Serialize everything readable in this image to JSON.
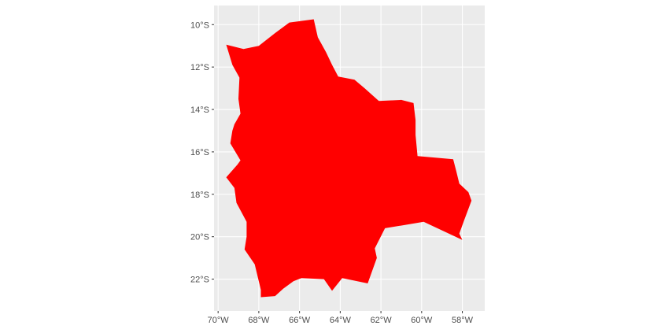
{
  "chart_data": {
    "type": "map",
    "country": "Bolivia",
    "fill_color": "#ff0000",
    "panel_background": "#ebebeb",
    "grid": true,
    "grid_color": "#ffffff",
    "xlim": [
      -70.2,
      -56.9
    ],
    "ylim": [
      -23.5,
      -9.1
    ],
    "x_ticks": [
      {
        "value": -70,
        "label": "70°W"
      },
      {
        "value": -68,
        "label": "68°W"
      },
      {
        "value": -66,
        "label": "66°W"
      },
      {
        "value": -64,
        "label": "64°W"
      },
      {
        "value": -62,
        "label": "62°W"
      },
      {
        "value": -60,
        "label": "60°W"
      },
      {
        "value": -58,
        "label": "58°W"
      }
    ],
    "y_ticks": [
      {
        "value": -10,
        "label": "10°S"
      },
      {
        "value": -12,
        "label": "12°S"
      },
      {
        "value": -14,
        "label": "14°S"
      },
      {
        "value": -16,
        "label": "16°S"
      },
      {
        "value": -18,
        "label": "18°S"
      },
      {
        "value": -20,
        "label": "20°S"
      },
      {
        "value": -22,
        "label": "22°S"
      }
    ],
    "boundary": [
      [
        -69.6,
        -10.95
      ],
      [
        -68.75,
        -11.15
      ],
      [
        -68.0,
        -11.0
      ],
      [
        -67.2,
        -10.4
      ],
      [
        -66.5,
        -9.9
      ],
      [
        -65.3,
        -9.75
      ],
      [
        -65.1,
        -10.6
      ],
      [
        -64.7,
        -11.3
      ],
      [
        -64.4,
        -11.9
      ],
      [
        -64.1,
        -12.45
      ],
      [
        -63.3,
        -12.6
      ],
      [
        -62.8,
        -13.0
      ],
      [
        -62.1,
        -13.6
      ],
      [
        -61.0,
        -13.55
      ],
      [
        -60.4,
        -13.7
      ],
      [
        -60.3,
        -14.5
      ],
      [
        -60.3,
        -15.2
      ],
      [
        -60.2,
        -16.2
      ],
      [
        -58.45,
        -16.35
      ],
      [
        -58.3,
        -16.9
      ],
      [
        -58.15,
        -17.5
      ],
      [
        -57.7,
        -17.9
      ],
      [
        -57.55,
        -18.3
      ],
      [
        -57.9,
        -19.2
      ],
      [
        -58.15,
        -19.85
      ],
      [
        -58.0,
        -20.15
      ],
      [
        -59.9,
        -19.3
      ],
      [
        -61.8,
        -19.6
      ],
      [
        -62.3,
        -20.55
      ],
      [
        -62.2,
        -21.0
      ],
      [
        -62.65,
        -22.2
      ],
      [
        -63.9,
        -21.95
      ],
      [
        -64.4,
        -22.55
      ],
      [
        -64.8,
        -22.0
      ],
      [
        -65.9,
        -21.95
      ],
      [
        -66.3,
        -22.1
      ],
      [
        -66.8,
        -22.45
      ],
      [
        -67.2,
        -22.8
      ],
      [
        -67.9,
        -22.85
      ],
      [
        -67.9,
        -22.5
      ],
      [
        -68.2,
        -21.3
      ],
      [
        -68.7,
        -20.6
      ],
      [
        -68.6,
        -20.0
      ],
      [
        -68.6,
        -19.3
      ],
      [
        -69.1,
        -18.4
      ],
      [
        -69.2,
        -17.7
      ],
      [
        -69.6,
        -17.2
      ],
      [
        -69.05,
        -16.6
      ],
      [
        -68.9,
        -16.4
      ],
      [
        -69.4,
        -15.6
      ],
      [
        -69.3,
        -15.0
      ],
      [
        -69.2,
        -14.7
      ],
      [
        -68.9,
        -14.2
      ],
      [
        -69.0,
        -13.5
      ],
      [
        -68.95,
        -12.5
      ],
      [
        -69.3,
        -11.9
      ],
      [
        -69.6,
        -10.95
      ]
    ]
  }
}
